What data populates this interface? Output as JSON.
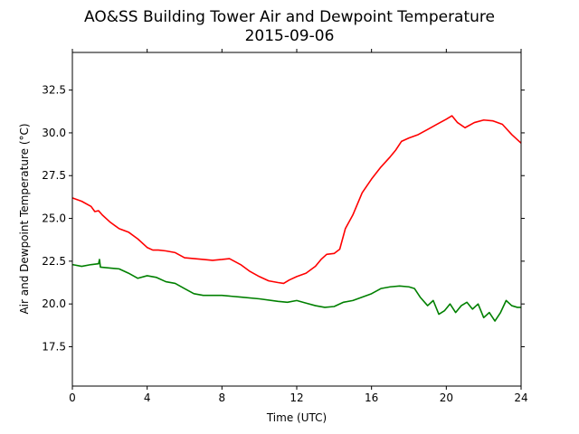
{
  "chart_data": {
    "type": "line",
    "title": "AO&SS Building Tower Air and Dewpoint Temperature",
    "subtitle": "2015-09-06",
    "xlabel": "Time (UTC)",
    "ylabel": "Air and Dewpoint Temperature (°C)",
    "xlim": [
      0,
      24
    ],
    "ylim": [
      15.2,
      34.7
    ],
    "x_ticks": [
      0,
      4,
      8,
      12,
      16,
      20,
      24
    ],
    "y_ticks": [
      17.5,
      20.0,
      22.5,
      25.0,
      27.5,
      30.0,
      32.5
    ],
    "y_tick_labels": [
      "17.5",
      "20.0",
      "22.5",
      "25.0",
      "27.5",
      "30.0",
      "32.5"
    ],
    "grid": false,
    "series": [
      {
        "color": "#ff0000",
        "x": [
          0,
          0.5,
          1,
          1.2,
          1.4,
          1.6,
          2,
          2.5,
          3,
          3.5,
          4,
          4.3,
          4.6,
          5,
          5.5,
          6,
          7,
          7.5,
          8,
          8.4,
          9,
          9.5,
          10,
          10.5,
          11,
          11.3,
          11.6,
          12,
          12.5,
          13,
          13.3,
          13.6,
          14,
          14.3,
          14.6,
          15,
          15.5,
          16,
          16.5,
          17,
          17.3,
          17.6,
          18,
          18.5,
          19,
          19.5,
          20,
          20.3,
          20.6,
          21,
          21.5,
          22,
          22.5,
          23,
          23.5,
          24
        ],
        "y": [
          26.2,
          26.0,
          25.7,
          25.4,
          25.45,
          25.2,
          24.8,
          24.4,
          24.2,
          23.8,
          23.3,
          23.15,
          23.15,
          23.1,
          23.0,
          22.7,
          22.6,
          22.55,
          22.6,
          22.65,
          22.3,
          21.9,
          21.6,
          21.35,
          21.25,
          21.2,
          21.4,
          21.6,
          21.8,
          22.2,
          22.6,
          22.9,
          22.95,
          23.2,
          24.4,
          25.2,
          26.5,
          27.3,
          28.0,
          28.6,
          29.0,
          29.5,
          29.7,
          29.9,
          30.2,
          30.5,
          30.8,
          31.0,
          30.6,
          30.3,
          30.6,
          30.75,
          30.7,
          30.5,
          29.9,
          29.4
        ]
      },
      {
        "color": "#008000",
        "x": [
          0,
          0.5,
          1,
          1.4,
          1.45,
          1.5,
          2,
          2.5,
          3,
          3.5,
          4,
          4.5,
          5,
          5.5,
          6,
          6.5,
          7,
          8,
          9,
          10,
          11,
          11.5,
          12,
          12.5,
          13,
          13.5,
          14,
          14.5,
          15,
          15.5,
          16,
          16.5,
          17,
          17.5,
          18,
          18.3,
          18.6,
          19,
          19.3,
          19.6,
          19.9,
          20.2,
          20.5,
          20.8,
          21.1,
          21.4,
          21.7,
          22,
          22.3,
          22.6,
          22.9,
          23.2,
          23.5,
          23.8,
          24
        ],
        "y": [
          22.3,
          22.2,
          22.3,
          22.35,
          22.6,
          22.15,
          22.1,
          22.05,
          21.8,
          21.5,
          21.65,
          21.55,
          21.3,
          21.2,
          20.9,
          20.6,
          20.5,
          20.5,
          20.4,
          20.3,
          20.15,
          20.1,
          20.2,
          20.05,
          19.9,
          19.8,
          19.85,
          20.1,
          20.2,
          20.4,
          20.6,
          20.9,
          21.0,
          21.05,
          21.0,
          20.9,
          20.4,
          19.9,
          20.2,
          19.4,
          19.6,
          20.0,
          19.5,
          19.9,
          20.1,
          19.7,
          20.0,
          19.2,
          19.5,
          19.0,
          19.5,
          20.2,
          19.9,
          19.8,
          19.8
        ]
      }
    ]
  }
}
